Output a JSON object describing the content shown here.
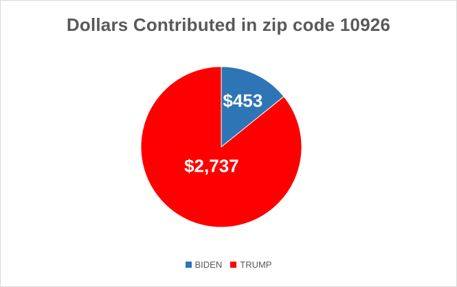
{
  "chart_data": {
    "type": "pie",
    "title": "Dollars Contributed in zip code 10926",
    "categories": [
      "BIDEN",
      "TRUMP"
    ],
    "values": [
      453,
      2737
    ],
    "data_labels": [
      "$453",
      "$2,737"
    ],
    "colors": [
      "#2e75b6",
      "#ff0000"
    ],
    "legend": "bottom"
  }
}
